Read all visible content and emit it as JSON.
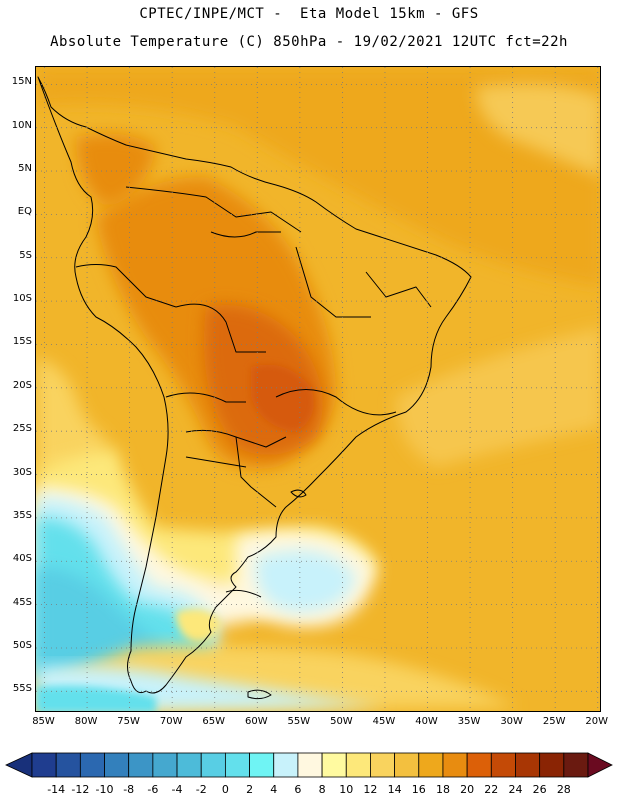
{
  "header": {
    "line1": "CPTEC/INPE/MCT -  Eta Model 15km - GFS",
    "line2": "Absolute Temperature (C) 850hPa - 19/02/2021 12UTC fct=22h"
  },
  "map": {
    "lat_labels": [
      "15N",
      "10N",
      "5N",
      "EQ",
      "5S",
      "10S",
      "15S",
      "20S",
      "25S",
      "30S",
      "35S",
      "40S",
      "45S",
      "50S",
      "55S"
    ],
    "lon_labels": [
      "85W",
      "80W",
      "75W",
      "70W",
      "65W",
      "60W",
      "55W",
      "50W",
      "45W",
      "40W",
      "35W",
      "30W",
      "25W",
      "20W"
    ],
    "domain": {
      "lon_min": -86,
      "lon_max": -19.5,
      "lat_min": -57.5,
      "lat_max": 17
    },
    "graticule_spacing_deg": 5
  },
  "colorbar": {
    "labels": [
      "-14",
      "-12",
      "-10",
      "-8",
      "-6",
      "-4",
      "-2",
      "0",
      "2",
      "4",
      "6",
      "8",
      "10",
      "12",
      "14",
      "16",
      "18",
      "20",
      "22",
      "24",
      "26",
      "28"
    ],
    "colors": [
      "#1f3d8f",
      "#25539f",
      "#2b68b0",
      "#3380bc",
      "#3c95c6",
      "#45a8cf",
      "#4dbbd9",
      "#58cee4",
      "#63e0ec",
      "#6ff4f4",
      "#c8f2fb",
      "#fff8e0",
      "#fffaa0",
      "#fde87a",
      "#f9d35e",
      "#f3c03f",
      "#eea81c",
      "#e88c10",
      "#dc6008",
      "#c44a06",
      "#a83604",
      "#8a2404",
      "#6a1a10"
    ],
    "under_color": "#18307a",
    "over_color": "#6a0a20"
  }
}
